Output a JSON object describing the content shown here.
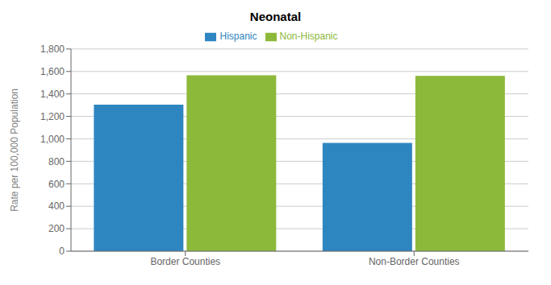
{
  "chart_data": {
    "type": "bar",
    "title": "Neonatal",
    "ylabel": "Rate per 100,000 Population",
    "categories": [
      "Border Counties",
      "Non-Border Counties"
    ],
    "series": [
      {
        "name": "Hispanic",
        "color": "#2E86C1",
        "values": [
          1304,
          963
        ]
      },
      {
        "name": "Non-Hispanic",
        "color": "#8DB93A",
        "values": [
          1565,
          1560
        ]
      }
    ],
    "ylim": [
      0,
      1800
    ],
    "yticks": [
      0,
      200,
      400,
      600,
      800,
      {
        "value": 1000,
        "label": "1,000"
      },
      {
        "value": 1200,
        "label": "1,200"
      },
      {
        "value": 1400,
        "label": "1,400"
      },
      {
        "value": 1600,
        "label": "1,600"
      },
      {
        "value": 1800,
        "label": "1,800"
      }
    ],
    "grid": true,
    "legend": "top"
  }
}
